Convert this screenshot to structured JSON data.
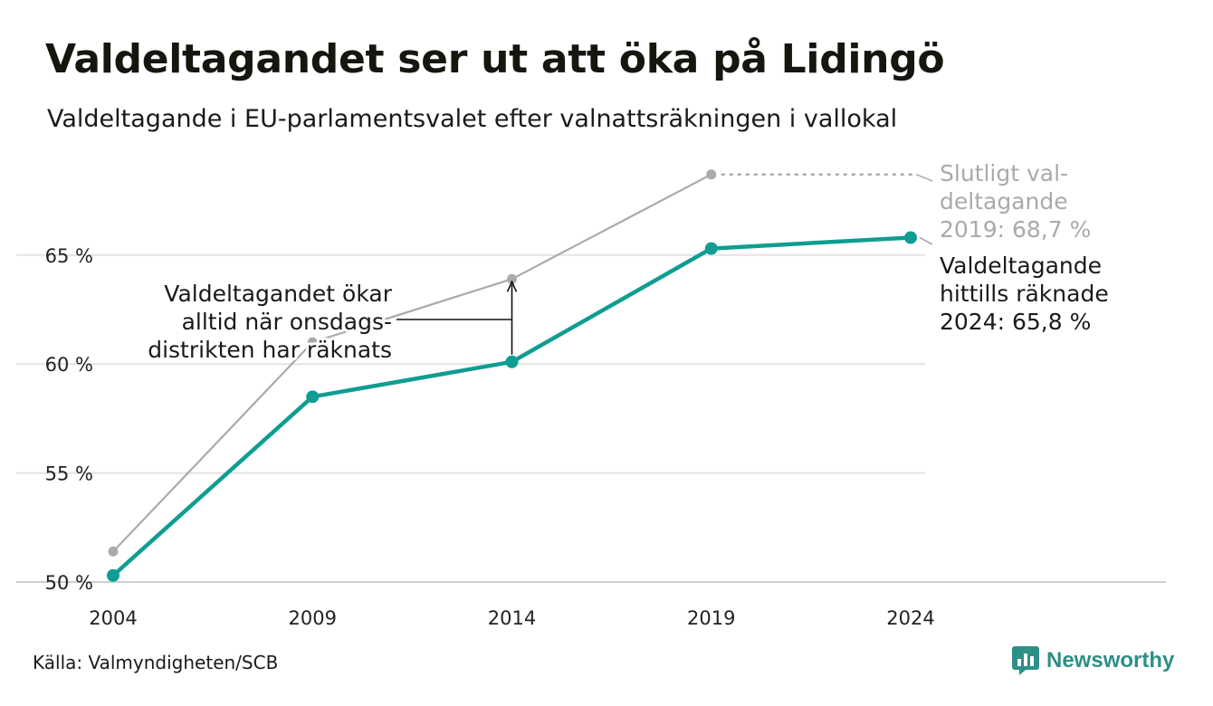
{
  "header": {
    "title": "Valdeltagandet ser ut att öka på Lidingö",
    "subtitle": "Valdeltagande i EU-parlamentsvalet efter valnattsräkningen i vallokal"
  },
  "footer": {
    "source": "Källa: Valmyndigheten/SCB",
    "brand": "Newsworthy",
    "brand_icon": "newsworthy-logo-icon"
  },
  "chart_data": {
    "type": "line",
    "title": "Valdeltagandet ser ut att öka på Lidingö",
    "subtitle": "Valdeltagande i EU-parlamentsvalet efter valnattsräkningen i vallokal",
    "x": [
      2004,
      2009,
      2014,
      2019,
      2024
    ],
    "x_tick_labels": [
      "2004",
      "2009",
      "2014",
      "2019",
      "2024"
    ],
    "y_ticks": [
      50,
      55,
      60,
      65
    ],
    "y_tick_labels": [
      "50 %",
      "55 %",
      "60 %",
      "65 %"
    ],
    "ylim": [
      49.5,
      69
    ],
    "grid": true,
    "legend": "none",
    "series": [
      {
        "key": "final",
        "values": [
          51.4,
          61.0,
          63.9,
          68.7,
          null
        ],
        "color": "#aaaaaa"
      },
      {
        "key": "election_night",
        "values": [
          50.3,
          58.5,
          60.1,
          65.3,
          65.8
        ],
        "color": "#0f9d92"
      }
    ],
    "annotations": {
      "final_label_lines": [
        "Slutligt val-",
        "deltagande",
        "2019: 68,7 %"
      ],
      "current_label_lines": [
        "Valdeltagande",
        "hittills räknade",
        "2024: 65,8 %"
      ],
      "gap_label_lines": [
        "Valdeltagandet ökar",
        "alltid när onsdags-",
        "distrikten har räknats"
      ],
      "gap_year": 2014
    }
  }
}
